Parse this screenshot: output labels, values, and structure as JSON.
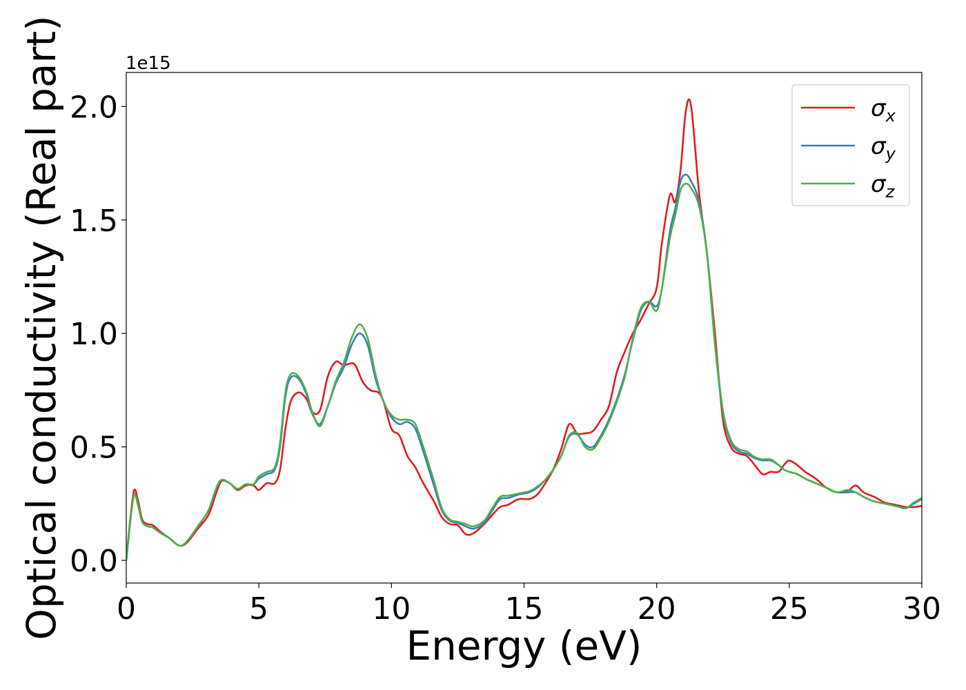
{
  "chart_data": {
    "type": "line",
    "title": "",
    "xlabel": "Energy (eV)",
    "ylabel": "Optical conductivity (Real part)",
    "y_offset_text": "1e15",
    "xlim": [
      0,
      30
    ],
    "ylim": [
      -0.1,
      2.15
    ],
    "xticks": [
      0,
      5,
      10,
      15,
      20,
      25,
      30
    ],
    "xtick_labels": [
      "0",
      "5",
      "10",
      "15",
      "20",
      "25",
      "30"
    ],
    "yticks": [
      0.0,
      0.5,
      1.0,
      1.5,
      2.0
    ],
    "ytick_labels": [
      "0.0",
      "0.5",
      "1.0",
      "1.5",
      "2.0"
    ],
    "grid": false,
    "legend_position": "top-right",
    "series": [
      {
        "name": "σx",
        "legend_symbol": "σ",
        "legend_subscript": "x",
        "color": "#e41a1c",
        "points": [
          [
            0,
            0.0
          ],
          [
            0.15,
            0.18
          ],
          [
            0.3,
            0.31
          ],
          [
            0.45,
            0.26
          ],
          [
            0.6,
            0.18
          ],
          [
            0.8,
            0.16
          ],
          [
            1.0,
            0.155
          ],
          [
            1.3,
            0.125
          ],
          [
            1.6,
            0.1
          ],
          [
            2.0,
            0.065
          ],
          [
            2.3,
            0.08
          ],
          [
            2.7,
            0.14
          ],
          [
            3.1,
            0.2
          ],
          [
            3.4,
            0.3
          ],
          [
            3.6,
            0.35
          ],
          [
            3.9,
            0.34
          ],
          [
            4.2,
            0.31
          ],
          [
            4.5,
            0.33
          ],
          [
            4.8,
            0.33
          ],
          [
            5.0,
            0.31
          ],
          [
            5.3,
            0.34
          ],
          [
            5.6,
            0.34
          ],
          [
            5.8,
            0.4
          ],
          [
            6.0,
            0.58
          ],
          [
            6.2,
            0.7
          ],
          [
            6.5,
            0.74
          ],
          [
            6.8,
            0.71
          ],
          [
            7.0,
            0.655
          ],
          [
            7.3,
            0.66
          ],
          [
            7.6,
            0.81
          ],
          [
            7.9,
            0.875
          ],
          [
            8.2,
            0.86
          ],
          [
            8.6,
            0.865
          ],
          [
            8.9,
            0.79
          ],
          [
            9.2,
            0.75
          ],
          [
            9.5,
            0.74
          ],
          [
            9.7,
            0.7
          ],
          [
            10.0,
            0.58
          ],
          [
            10.3,
            0.55
          ],
          [
            10.6,
            0.46
          ],
          [
            10.9,
            0.41
          ],
          [
            11.2,
            0.34
          ],
          [
            11.6,
            0.26
          ],
          [
            11.9,
            0.19
          ],
          [
            12.2,
            0.16
          ],
          [
            12.5,
            0.155
          ],
          [
            12.8,
            0.115
          ],
          [
            13.1,
            0.12
          ],
          [
            13.5,
            0.16
          ],
          [
            13.8,
            0.2
          ],
          [
            14.1,
            0.235
          ],
          [
            14.4,
            0.245
          ],
          [
            14.8,
            0.27
          ],
          [
            15.2,
            0.27
          ],
          [
            15.5,
            0.29
          ],
          [
            15.8,
            0.34
          ],
          [
            16.1,
            0.4
          ],
          [
            16.4,
            0.49
          ],
          [
            16.7,
            0.6
          ],
          [
            17.0,
            0.56
          ],
          [
            17.3,
            0.56
          ],
          [
            17.6,
            0.57
          ],
          [
            17.9,
            0.62
          ],
          [
            18.2,
            0.68
          ],
          [
            18.5,
            0.83
          ],
          [
            18.8,
            0.92
          ],
          [
            19.1,
            1.0
          ],
          [
            19.4,
            1.06
          ],
          [
            19.7,
            1.13
          ],
          [
            20.0,
            1.2
          ],
          [
            20.2,
            1.4
          ],
          [
            20.5,
            1.61
          ],
          [
            20.7,
            1.58
          ],
          [
            20.9,
            1.72
          ],
          [
            21.1,
            1.98
          ],
          [
            21.3,
            2.0
          ],
          [
            21.6,
            1.62
          ],
          [
            21.9,
            1.35
          ],
          [
            22.2,
            1.0
          ],
          [
            22.5,
            0.62
          ],
          [
            22.8,
            0.5
          ],
          [
            23.1,
            0.47
          ],
          [
            23.4,
            0.46
          ],
          [
            23.7,
            0.42
          ],
          [
            24.0,
            0.38
          ],
          [
            24.3,
            0.39
          ],
          [
            24.6,
            0.39
          ],
          [
            24.8,
            0.42
          ],
          [
            25.0,
            0.44
          ],
          [
            25.3,
            0.42
          ],
          [
            25.6,
            0.39
          ],
          [
            26.0,
            0.36
          ],
          [
            26.4,
            0.32
          ],
          [
            26.8,
            0.3
          ],
          [
            27.2,
            0.305
          ],
          [
            27.5,
            0.33
          ],
          [
            27.8,
            0.3
          ],
          [
            28.2,
            0.28
          ],
          [
            28.6,
            0.255
          ],
          [
            29.0,
            0.245
          ],
          [
            29.4,
            0.235
          ],
          [
            29.7,
            0.235
          ],
          [
            30.0,
            0.24
          ]
        ]
      },
      {
        "name": "σy",
        "legend_symbol": "σ",
        "legend_subscript": "y",
        "color": "#377eb8",
        "points": [
          [
            0,
            0.0
          ],
          [
            0.15,
            0.17
          ],
          [
            0.3,
            0.29
          ],
          [
            0.45,
            0.24
          ],
          [
            0.6,
            0.17
          ],
          [
            0.8,
            0.15
          ],
          [
            1.0,
            0.145
          ],
          [
            1.3,
            0.12
          ],
          [
            1.6,
            0.1
          ],
          [
            2.0,
            0.065
          ],
          [
            2.3,
            0.085
          ],
          [
            2.7,
            0.15
          ],
          [
            3.1,
            0.22
          ],
          [
            3.4,
            0.32
          ],
          [
            3.6,
            0.355
          ],
          [
            3.9,
            0.34
          ],
          [
            4.2,
            0.315
          ],
          [
            4.5,
            0.335
          ],
          [
            4.8,
            0.335
          ],
          [
            5.0,
            0.36
          ],
          [
            5.3,
            0.38
          ],
          [
            5.6,
            0.4
          ],
          [
            5.8,
            0.5
          ],
          [
            6.0,
            0.72
          ],
          [
            6.2,
            0.805
          ],
          [
            6.5,
            0.8
          ],
          [
            6.8,
            0.73
          ],
          [
            7.0,
            0.65
          ],
          [
            7.3,
            0.6
          ],
          [
            7.6,
            0.68
          ],
          [
            7.9,
            0.78
          ],
          [
            8.2,
            0.85
          ],
          [
            8.5,
            0.95
          ],
          [
            8.8,
            1.0
          ],
          [
            9.1,
            0.95
          ],
          [
            9.4,
            0.8
          ],
          [
            9.7,
            0.7
          ],
          [
            10.0,
            0.63
          ],
          [
            10.3,
            0.6
          ],
          [
            10.6,
            0.61
          ],
          [
            10.9,
            0.58
          ],
          [
            11.2,
            0.48
          ],
          [
            11.6,
            0.33
          ],
          [
            11.9,
            0.22
          ],
          [
            12.2,
            0.175
          ],
          [
            12.5,
            0.165
          ],
          [
            12.8,
            0.15
          ],
          [
            13.1,
            0.14
          ],
          [
            13.5,
            0.165
          ],
          [
            13.8,
            0.22
          ],
          [
            14.1,
            0.27
          ],
          [
            14.4,
            0.275
          ],
          [
            14.8,
            0.29
          ],
          [
            15.2,
            0.3
          ],
          [
            15.5,
            0.32
          ],
          [
            15.8,
            0.355
          ],
          [
            16.1,
            0.4
          ],
          [
            16.4,
            0.46
          ],
          [
            16.7,
            0.545
          ],
          [
            17.0,
            0.555
          ],
          [
            17.3,
            0.51
          ],
          [
            17.6,
            0.5
          ],
          [
            17.9,
            0.55
          ],
          [
            18.2,
            0.62
          ],
          [
            18.5,
            0.71
          ],
          [
            18.8,
            0.82
          ],
          [
            19.1,
            0.97
          ],
          [
            19.4,
            1.1
          ],
          [
            19.7,
            1.14
          ],
          [
            20.0,
            1.12
          ],
          [
            20.2,
            1.2
          ],
          [
            20.5,
            1.45
          ],
          [
            20.7,
            1.55
          ],
          [
            20.9,
            1.67
          ],
          [
            21.1,
            1.7
          ],
          [
            21.3,
            1.67
          ],
          [
            21.6,
            1.58
          ],
          [
            21.9,
            1.35
          ],
          [
            22.2,
            0.95
          ],
          [
            22.5,
            0.65
          ],
          [
            22.8,
            0.52
          ],
          [
            23.1,
            0.48
          ],
          [
            23.4,
            0.47
          ],
          [
            23.7,
            0.45
          ],
          [
            24.0,
            0.44
          ],
          [
            24.3,
            0.44
          ],
          [
            24.6,
            0.42
          ],
          [
            24.8,
            0.4
          ],
          [
            25.0,
            0.39
          ],
          [
            25.3,
            0.38
          ],
          [
            25.6,
            0.36
          ],
          [
            26.0,
            0.34
          ],
          [
            26.4,
            0.32
          ],
          [
            26.8,
            0.3
          ],
          [
            27.2,
            0.3
          ],
          [
            27.5,
            0.3
          ],
          [
            27.8,
            0.28
          ],
          [
            28.2,
            0.26
          ],
          [
            28.6,
            0.25
          ],
          [
            29.0,
            0.24
          ],
          [
            29.4,
            0.23
          ],
          [
            29.7,
            0.25
          ],
          [
            30.0,
            0.27
          ]
        ]
      },
      {
        "name": "σz",
        "legend_symbol": "σ",
        "legend_subscript": "z",
        "color": "#4daf4a",
        "points": [
          [
            0,
            0.0
          ],
          [
            0.15,
            0.17
          ],
          [
            0.3,
            0.29
          ],
          [
            0.45,
            0.24
          ],
          [
            0.6,
            0.17
          ],
          [
            0.8,
            0.15
          ],
          [
            1.0,
            0.145
          ],
          [
            1.3,
            0.12
          ],
          [
            1.6,
            0.1
          ],
          [
            2.0,
            0.065
          ],
          [
            2.3,
            0.085
          ],
          [
            2.7,
            0.15
          ],
          [
            3.1,
            0.22
          ],
          [
            3.4,
            0.32
          ],
          [
            3.6,
            0.355
          ],
          [
            3.9,
            0.34
          ],
          [
            4.2,
            0.315
          ],
          [
            4.5,
            0.335
          ],
          [
            4.8,
            0.335
          ],
          [
            5.0,
            0.37
          ],
          [
            5.3,
            0.39
          ],
          [
            5.6,
            0.41
          ],
          [
            5.8,
            0.52
          ],
          [
            6.0,
            0.74
          ],
          [
            6.2,
            0.82
          ],
          [
            6.5,
            0.81
          ],
          [
            6.8,
            0.74
          ],
          [
            7.0,
            0.66
          ],
          [
            7.3,
            0.59
          ],
          [
            7.6,
            0.68
          ],
          [
            7.9,
            0.79
          ],
          [
            8.2,
            0.87
          ],
          [
            8.5,
            0.98
          ],
          [
            8.8,
            1.04
          ],
          [
            9.1,
            0.98
          ],
          [
            9.4,
            0.82
          ],
          [
            9.7,
            0.7
          ],
          [
            10.0,
            0.64
          ],
          [
            10.3,
            0.62
          ],
          [
            10.6,
            0.62
          ],
          [
            10.9,
            0.6
          ],
          [
            11.2,
            0.5
          ],
          [
            11.6,
            0.35
          ],
          [
            11.9,
            0.23
          ],
          [
            12.2,
            0.18
          ],
          [
            12.5,
            0.17
          ],
          [
            12.8,
            0.16
          ],
          [
            13.1,
            0.15
          ],
          [
            13.5,
            0.175
          ],
          [
            13.8,
            0.23
          ],
          [
            14.1,
            0.28
          ],
          [
            14.4,
            0.285
          ],
          [
            14.8,
            0.295
          ],
          [
            15.2,
            0.305
          ],
          [
            15.5,
            0.325
          ],
          [
            15.8,
            0.355
          ],
          [
            16.1,
            0.4
          ],
          [
            16.4,
            0.46
          ],
          [
            16.7,
            0.55
          ],
          [
            17.0,
            0.56
          ],
          [
            17.3,
            0.5
          ],
          [
            17.6,
            0.49
          ],
          [
            17.9,
            0.54
          ],
          [
            18.2,
            0.61
          ],
          [
            18.5,
            0.7
          ],
          [
            18.8,
            0.81
          ],
          [
            19.1,
            0.98
          ],
          [
            19.4,
            1.11
          ],
          [
            19.7,
            1.14
          ],
          [
            20.0,
            1.1
          ],
          [
            20.2,
            1.2
          ],
          [
            20.5,
            1.42
          ],
          [
            20.7,
            1.52
          ],
          [
            20.9,
            1.63
          ],
          [
            21.1,
            1.66
          ],
          [
            21.3,
            1.64
          ],
          [
            21.6,
            1.56
          ],
          [
            21.9,
            1.35
          ],
          [
            22.2,
            0.96
          ],
          [
            22.5,
            0.66
          ],
          [
            22.8,
            0.53
          ],
          [
            23.1,
            0.49
          ],
          [
            23.4,
            0.48
          ],
          [
            23.7,
            0.455
          ],
          [
            24.0,
            0.445
          ],
          [
            24.3,
            0.445
          ],
          [
            24.6,
            0.42
          ],
          [
            24.8,
            0.4
          ],
          [
            25.0,
            0.39
          ],
          [
            25.3,
            0.38
          ],
          [
            25.6,
            0.36
          ],
          [
            26.0,
            0.34
          ],
          [
            26.4,
            0.32
          ],
          [
            26.8,
            0.3
          ],
          [
            27.2,
            0.31
          ],
          [
            27.5,
            0.3
          ],
          [
            27.8,
            0.28
          ],
          [
            28.2,
            0.26
          ],
          [
            28.6,
            0.25
          ],
          [
            29.0,
            0.24
          ],
          [
            29.4,
            0.23
          ],
          [
            29.7,
            0.255
          ],
          [
            30.0,
            0.275
          ]
        ]
      }
    ]
  }
}
